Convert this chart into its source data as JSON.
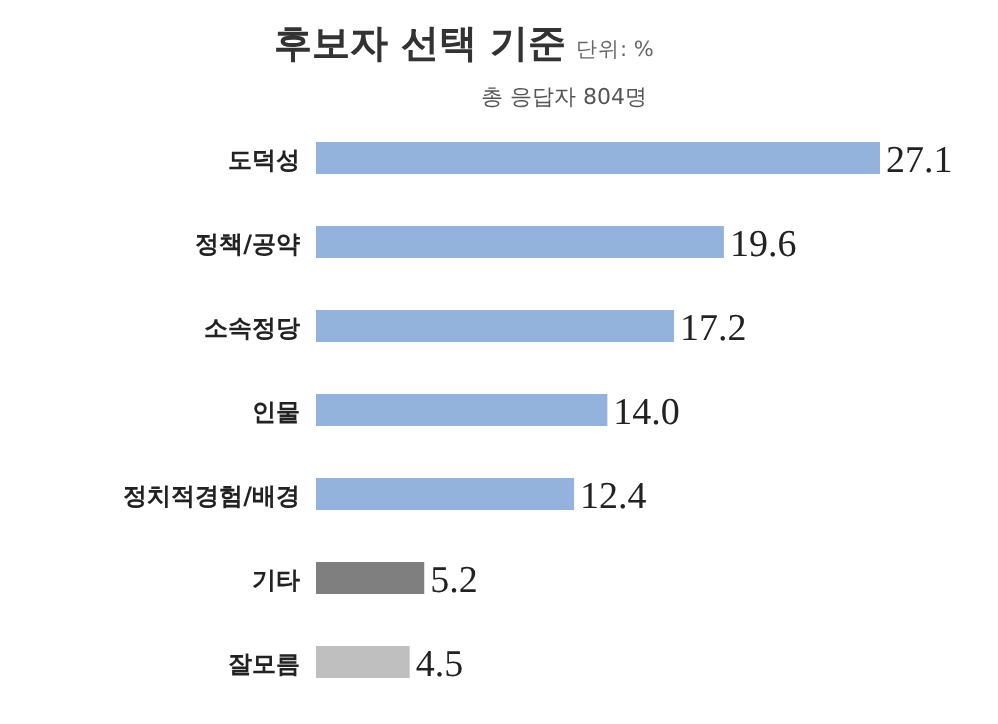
{
  "chart_data": {
    "type": "bar",
    "orientation": "horizontal",
    "title": "후보자 선택 기준",
    "subtitle": "총 응답자 804명",
    "annotations": [
      "단위: %"
    ],
    "categories": [
      "도덕성",
      "정책/공약",
      "소속정당",
      "인물",
      "정치적경험/배경",
      "기타",
      "잘모름"
    ],
    "values": [
      27.1,
      19.6,
      17.2,
      14.0,
      12.4,
      5.2,
      4.5
    ],
    "colors": [
      "#93b3dc",
      "#93b3dc",
      "#93b3dc",
      "#93b3dc",
      "#93b3dc",
      "#7f7f7f",
      "#bfbfbf"
    ],
    "value_labels": [
      "27.1",
      "19.6",
      "17.2",
      "14.0",
      "12.4",
      "5.2",
      "4.5"
    ]
  }
}
